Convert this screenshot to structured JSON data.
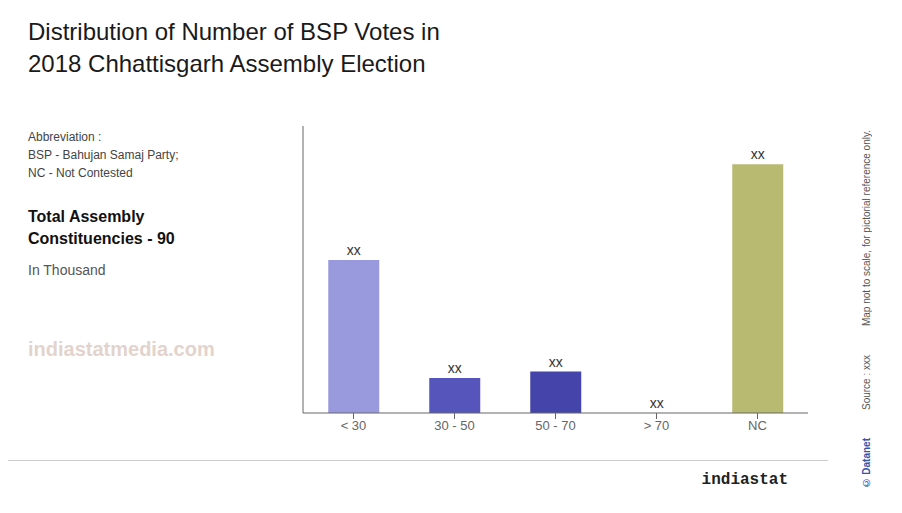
{
  "chart_data": {
    "type": "bar",
    "title": "Distribution of Number of BSP Votes in",
    "subtitle": "2018 Chhattisgarh Assembly Election",
    "categories": [
      "< 30",
      "30 - 50",
      "50 - 70",
      "> 70",
      "NC"
    ],
    "values": [
      4.8,
      1.1,
      1.3,
      0.001,
      7.8
    ],
    "colors": [
      "#9999dd",
      "#5555bb",
      "#4444aa",
      "#cccccc",
      "#b8ba72"
    ],
    "data_labels": true,
    "value_labels": [
      "xx",
      "xx",
      "xx",
      "xx",
      "xx"
    ],
    "ylim": [
      0,
      9.0
    ],
    "tick_labels": "x",
    "grid": false,
    "annotations": [
      "Abbreviation :",
      "BSP - Bahujan Samaj Party;",
      "NC - Not Contested",
      "Total Assembly",
      "Constituencies - 90",
      "In Thousand",
      "indiastatmedia.com",
      "indiastat",
      "© Datanet",
      "Source : xxx",
      "Map not to scale, for pictorial reference only."
    ]
  }
}
